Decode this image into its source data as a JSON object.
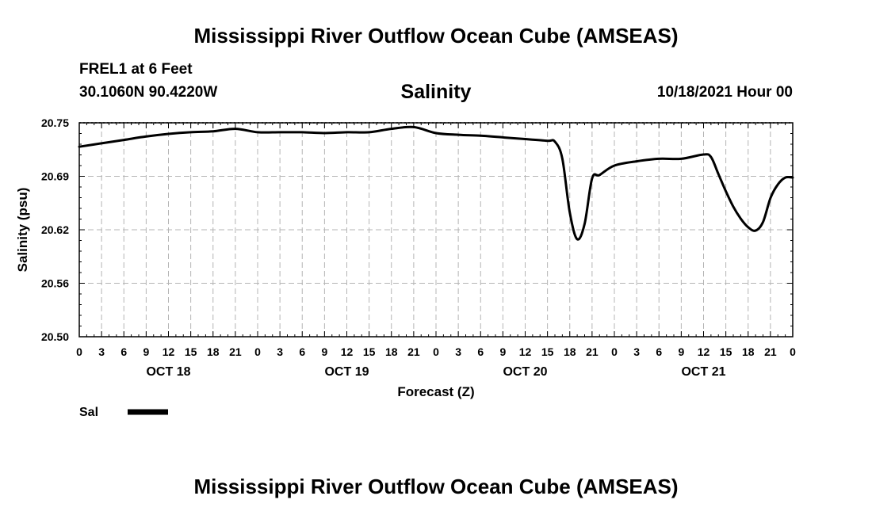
{
  "page": {
    "title": "Mississippi River Outflow Ocean Cube (AMSEAS)",
    "footer_title": "Mississippi River Outflow Ocean Cube (AMSEAS)",
    "station": "FREL1 at 6 Feet",
    "coords": "30.1060N  90.4220W",
    "variable": "Salinity",
    "run_time": "10/18/2021 Hour 00"
  },
  "legend": {
    "label": "Sal",
    "color": "#000000"
  },
  "chart_data": {
    "type": "line",
    "title": "Salinity",
    "xlabel": "Forecast (Z)",
    "ylabel": "Salinity (psu)",
    "xlim": [
      0,
      96
    ],
    "ylim": [
      20.5,
      20.75
    ],
    "yticks": [
      "20.75",
      "20.69",
      "20.62",
      "20.56",
      "20.50"
    ],
    "ytick_values": [
      20.75,
      20.6875,
      20.625,
      20.5625,
      20.5
    ],
    "xtick_labels": [
      "0",
      "3",
      "6",
      "9",
      "12",
      "15",
      "18",
      "21",
      "0",
      "3",
      "6",
      "9",
      "12",
      "15",
      "18",
      "21",
      "0",
      "3",
      "6",
      "9",
      "12",
      "15",
      "18",
      "21",
      "0",
      "3",
      "6",
      "9",
      "12",
      "15",
      "18",
      "21",
      "0"
    ],
    "day_labels": [
      {
        "label": "OCT 18",
        "hour": 12
      },
      {
        "label": "OCT 19",
        "hour": 36
      },
      {
        "label": "OCT 20",
        "hour": 60
      },
      {
        "label": "OCT 21",
        "hour": 84
      }
    ],
    "grid": true,
    "series": [
      {
        "name": "Sal",
        "color": "#000000",
        "x": [
          0,
          3,
          6,
          9,
          12,
          15,
          18,
          21,
          24,
          27,
          30,
          33,
          36,
          39,
          42,
          45,
          48,
          51,
          54,
          57,
          60,
          63,
          64,
          65,
          66,
          67,
          68,
          69,
          70,
          72,
          75,
          78,
          81,
          84,
          85,
          86,
          87,
          88,
          89,
          90,
          91,
          92,
          93,
          94,
          95,
          96
        ],
        "values": [
          20.722,
          20.726,
          20.73,
          20.734,
          20.737,
          20.739,
          20.74,
          20.743,
          20.739,
          20.739,
          20.739,
          20.738,
          20.739,
          20.739,
          20.743,
          20.745,
          20.738,
          20.736,
          20.735,
          20.733,
          20.731,
          20.729,
          20.728,
          20.708,
          20.645,
          20.614,
          20.632,
          20.685,
          20.689,
          20.7,
          20.705,
          20.708,
          20.708,
          20.713,
          20.71,
          20.69,
          20.67,
          20.652,
          20.638,
          20.628,
          20.624,
          20.634,
          20.662,
          20.678,
          20.686,
          20.686
        ]
      }
    ]
  }
}
